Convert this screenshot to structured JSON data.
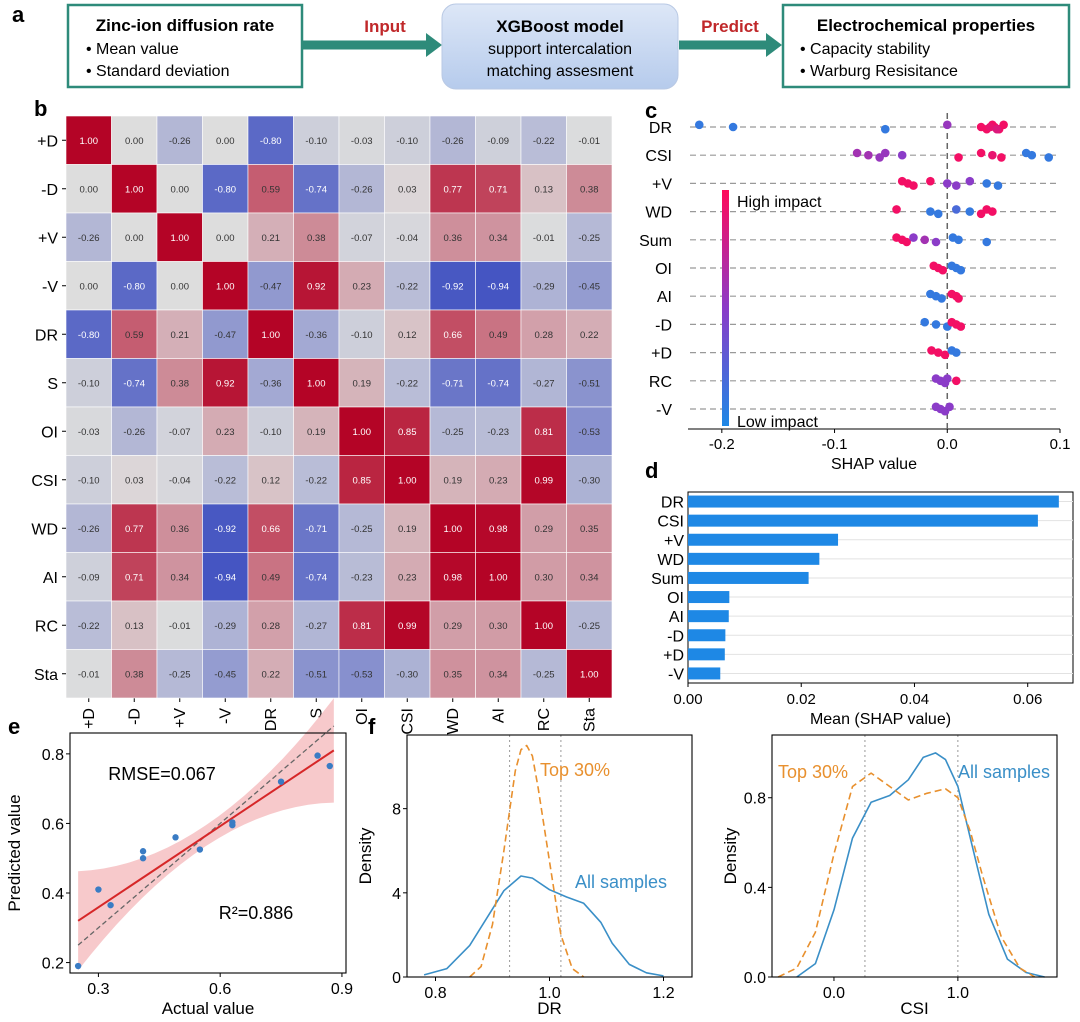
{
  "panel_labels": {
    "a": "a",
    "b": "b",
    "c": "c",
    "d": "d",
    "e": "e",
    "f": "f"
  },
  "flow": {
    "box1": {
      "title": "Zinc-ion diffusion rate",
      "items": [
        "• Mean value",
        "• Standard deviation"
      ]
    },
    "arrow1": "Input",
    "box2": {
      "title": "XGBoost model",
      "lines": [
        "support intercalation",
        "matching assesment"
      ]
    },
    "arrow2": "Predict",
    "box3": {
      "title": "Electrochemical properties",
      "items": [
        "• Capacity stability",
        "• Warburg Resisitance"
      ]
    },
    "colors": {
      "border": "#2e8b7a",
      "arrow": "#2e8b7a",
      "arrow_text": "#c0282a",
      "model_fill": "#c9d9f2"
    }
  },
  "chart_data": [
    {
      "type": "heatmap",
      "labels": [
        "+D",
        "-D",
        "+V",
        "-V",
        "DR",
        "S",
        "OI",
        "CSI",
        "WD",
        "AI",
        "RC",
        "Sta"
      ],
      "colormap": "coolwarm",
      "vmin": -1,
      "vmax": 1,
      "matrix": [
        [
          1.0,
          -0.0,
          -0.26,
          0.0,
          -0.8,
          -0.1,
          -0.03,
          -0.1,
          -0.26,
          -0.09,
          -0.22,
          -0.01
        ],
        [
          -0.0,
          1.0,
          0.0,
          -0.8,
          0.59,
          -0.74,
          -0.26,
          0.03,
          0.77,
          0.71,
          0.13,
          0.38
        ],
        [
          -0.26,
          0.0,
          1.0,
          0.0,
          0.21,
          0.38,
          -0.07,
          -0.04,
          0.36,
          0.34,
          -0.01,
          -0.25
        ],
        [
          0.0,
          -0.8,
          0.0,
          1.0,
          -0.47,
          0.92,
          0.23,
          -0.22,
          -0.92,
          -0.94,
          -0.29,
          -0.45
        ],
        [
          -0.8,
          0.59,
          0.21,
          -0.47,
          1.0,
          -0.36,
          -0.1,
          0.12,
          0.66,
          0.49,
          0.28,
          0.22
        ],
        [
          -0.1,
          -0.74,
          0.38,
          0.92,
          -0.36,
          1.0,
          0.19,
          -0.22,
          -0.71,
          -0.74,
          -0.27,
          -0.51
        ],
        [
          -0.03,
          -0.26,
          -0.07,
          0.23,
          -0.1,
          0.19,
          1.0,
          0.85,
          -0.25,
          -0.23,
          0.81,
          -0.53
        ],
        [
          -0.1,
          0.03,
          -0.04,
          -0.22,
          0.12,
          -0.22,
          0.85,
          1.0,
          0.19,
          0.23,
          0.99,
          -0.3
        ],
        [
          -0.26,
          0.77,
          0.36,
          -0.92,
          0.66,
          -0.71,
          -0.25,
          0.19,
          1.0,
          0.98,
          0.29,
          0.35
        ],
        [
          -0.09,
          0.71,
          0.34,
          -0.94,
          0.49,
          -0.74,
          -0.23,
          0.23,
          0.98,
          1.0,
          0.3,
          0.34
        ],
        [
          -0.22,
          0.13,
          -0.01,
          -0.29,
          0.28,
          -0.27,
          0.81,
          0.99,
          0.29,
          0.3,
          1.0,
          -0.25
        ],
        [
          -0.01,
          0.38,
          -0.25,
          -0.45,
          0.22,
          -0.51,
          -0.53,
          -0.3,
          0.35,
          0.34,
          -0.25,
          1.0
        ]
      ]
    },
    {
      "type": "scatter",
      "subtype": "shap_beeswarm",
      "features": [
        "DR",
        "CSI",
        "+V",
        "WD",
        "Sum",
        "OI",
        "AI",
        "-D",
        "+D",
        "RC",
        "-V"
      ],
      "xlabel": "SHAP value",
      "xlim": [
        -0.23,
        0.1
      ],
      "xticks": [
        -0.2,
        -0.1,
        0.0,
        0.1
      ],
      "xtick_labels": [
        "-0.2",
        "-0.1",
        "0.0",
        "0.1"
      ],
      "colorbar": {
        "high": "High impact",
        "low": "Low impact",
        "high_color": "#ff0a5a",
        "low_color": "#1e88e5"
      },
      "points": [
        [
          [
            -0.22,
            0.1
          ],
          [
            -0.19,
            0.1
          ],
          [
            -0.055,
            0.1
          ],
          [
            0.0,
            0.55
          ],
          [
            0.03,
            0.95
          ],
          [
            0.035,
            0.95
          ],
          [
            0.04,
            0.95
          ],
          [
            0.042,
            0.95
          ],
          [
            0.046,
            0.95
          ],
          [
            0.05,
            0.95
          ],
          [
            0.038,
            0.9
          ],
          [
            0.044,
            0.85
          ]
        ],
        [
          [
            -0.08,
            0.6
          ],
          [
            -0.07,
            0.6
          ],
          [
            -0.06,
            0.55
          ],
          [
            -0.055,
            0.55
          ],
          [
            -0.04,
            0.5
          ],
          [
            0.01,
            0.95
          ],
          [
            0.03,
            0.95
          ],
          [
            0.04,
            0.9
          ],
          [
            0.048,
            0.95
          ],
          [
            0.07,
            0.1
          ],
          [
            0.075,
            0.1
          ],
          [
            0.09,
            0.1
          ]
        ],
        [
          [
            -0.04,
            0.95
          ],
          [
            -0.035,
            0.95
          ],
          [
            -0.03,
            0.95
          ],
          [
            -0.015,
            0.95
          ],
          [
            0.0,
            0.5
          ],
          [
            0.008,
            0.5
          ],
          [
            0.02,
            0.5
          ],
          [
            0.035,
            0.1
          ],
          [
            0.045,
            0.1
          ]
        ],
        [
          [
            -0.045,
            0.95
          ],
          [
            -0.015,
            0.1
          ],
          [
            -0.008,
            0.1
          ],
          [
            0.008,
            0.2
          ],
          [
            0.02,
            0.1
          ],
          [
            0.03,
            0.95
          ],
          [
            0.035,
            0.95
          ],
          [
            0.04,
            0.95
          ]
        ],
        [
          [
            -0.045,
            0.95
          ],
          [
            -0.04,
            0.95
          ],
          [
            -0.036,
            0.95
          ],
          [
            -0.03,
            0.5
          ],
          [
            -0.02,
            0.6
          ],
          [
            -0.01,
            0.5
          ],
          [
            0.005,
            0.1
          ],
          [
            0.01,
            0.1
          ],
          [
            0.035,
            0.1
          ]
        ],
        [
          [
            -0.012,
            0.95
          ],
          [
            -0.008,
            0.95
          ],
          [
            -0.004,
            0.95
          ],
          [
            0.004,
            0.1
          ],
          [
            0.008,
            0.1
          ],
          [
            0.012,
            0.1
          ]
        ],
        [
          [
            -0.015,
            0.1
          ],
          [
            -0.01,
            0.1
          ],
          [
            -0.005,
            0.1
          ],
          [
            0.004,
            0.95
          ],
          [
            0.008,
            0.95
          ],
          [
            0.01,
            0.95
          ]
        ],
        [
          [
            -0.02,
            0.1
          ],
          [
            -0.01,
            0.1
          ],
          [
            0.0,
            0.1
          ],
          [
            0.004,
            0.95
          ],
          [
            0.008,
            0.95
          ],
          [
            0.012,
            0.95
          ]
        ],
        [
          [
            -0.014,
            0.95
          ],
          [
            -0.008,
            0.95
          ],
          [
            -0.002,
            0.95
          ],
          [
            0.004,
            0.1
          ],
          [
            0.008,
            0.1
          ]
        ],
        [
          [
            -0.01,
            0.5
          ],
          [
            -0.006,
            0.5
          ],
          [
            -0.002,
            0.5
          ],
          [
            0.0,
            0.5
          ],
          [
            0.008,
            0.95
          ]
        ],
        [
          [
            -0.01,
            0.5
          ],
          [
            -0.006,
            0.5
          ],
          [
            -0.002,
            0.5
          ],
          [
            0.002,
            0.5
          ]
        ]
      ]
    },
    {
      "type": "bar",
      "orientation": "horizontal",
      "categories": [
        "DR",
        "CSI",
        "+V",
        "WD",
        "Sum",
        "OI",
        "AI",
        "-D",
        "+D",
        "-V"
      ],
      "values": [
        0.0655,
        0.0618,
        0.0265,
        0.0232,
        0.0213,
        0.0073,
        0.0072,
        0.0066,
        0.0065,
        0.0057
      ],
      "xlabel": "Mean (SHAP value)",
      "xlim": [
        0,
        0.068
      ],
      "xticks": [
        0.0,
        0.02,
        0.04,
        0.06
      ],
      "xtick_labels": [
        "0.00",
        "0.02",
        "0.04",
        "0.06"
      ],
      "color": "#1e88e5"
    },
    {
      "type": "scatter",
      "xlabel": "Actual value",
      "ylabel": "Predicted value",
      "xlim": [
        0.23,
        0.91
      ],
      "ylim": [
        0.17,
        0.86
      ],
      "xticks": [
        0.3,
        0.6,
        0.9
      ],
      "yticks": [
        0.2,
        0.4,
        0.6,
        0.8
      ],
      "xtick_labels": [
        "0.3",
        "0.6",
        "0.9"
      ],
      "ytick_labels": [
        "0.2",
        "0.4",
        "0.6",
        "0.8"
      ],
      "points": [
        [
          0.25,
          0.19
        ],
        [
          0.3,
          0.41
        ],
        [
          0.33,
          0.365
        ],
        [
          0.41,
          0.52
        ],
        [
          0.41,
          0.5
        ],
        [
          0.49,
          0.56
        ],
        [
          0.55,
          0.525
        ],
        [
          0.63,
          0.595
        ],
        [
          0.63,
          0.603
        ],
        [
          0.75,
          0.72
        ],
        [
          0.84,
          0.795
        ],
        [
          0.87,
          0.765
        ]
      ],
      "fit_line": [
        [
          0.25,
          0.32
        ],
        [
          0.88,
          0.81
        ]
      ],
      "identity_line": [
        [
          0.25,
          0.25
        ],
        [
          0.88,
          0.88
        ]
      ],
      "annotations": [
        "RMSE=0.067",
        "R²=0.886"
      ],
      "colors": {
        "points": "#3a7cc4",
        "fit": "#d62728",
        "band": "#f4b7b9"
      }
    },
    {
      "type": "line",
      "subtype": "kde",
      "xlabel": "DR",
      "ylabel": "Density",
      "xlim": [
        0.75,
        1.25
      ],
      "ylim": [
        0,
        11.5
      ],
      "xticks": [
        0.8,
        1.0,
        1.2
      ],
      "yticks": [
        0,
        4,
        8
      ],
      "xtick_labels": [
        "0.8",
        "1.0",
        "1.2"
      ],
      "ytick_labels": [
        "0",
        "4",
        "8"
      ],
      "vlines": [
        0.93,
        1.02
      ],
      "series": [
        {
          "name": "All samples",
          "color": "#3a8fc7",
          "dash": "solid",
          "x": [
            0.78,
            0.82,
            0.86,
            0.89,
            0.92,
            0.95,
            0.97,
            1.0,
            1.03,
            1.06,
            1.09,
            1.11,
            1.14,
            1.17,
            1.2
          ],
          "y": [
            0.1,
            0.4,
            1.5,
            2.8,
            4.1,
            4.8,
            4.7,
            4.15,
            3.8,
            3.5,
            2.6,
            1.6,
            0.6,
            0.2,
            0.05
          ]
        },
        {
          "name": "Top 30%",
          "color": "#e8902e",
          "dash": "dashed",
          "x": [
            0.86,
            0.88,
            0.9,
            0.92,
            0.94,
            0.95,
            0.96,
            0.97,
            0.98,
            1.0,
            1.02,
            1.04,
            1.06
          ],
          "y": [
            0.0,
            0.5,
            2.5,
            6.0,
            9.8,
            10.8,
            11.0,
            10.5,
            9.0,
            5.5,
            2.0,
            0.4,
            0.0
          ]
        }
      ]
    },
    {
      "type": "line",
      "subtype": "kde",
      "xlabel": "CSI",
      "ylabel": "Density",
      "xlim": [
        -0.5,
        1.8
      ],
      "ylim": [
        0,
        1.08
      ],
      "xticks": [
        0.0,
        1.0
      ],
      "yticks": [
        0.0,
        0.4,
        0.8
      ],
      "xtick_labels": [
        "0.0",
        "1.0"
      ],
      "ytick_labels": [
        "0.0",
        "0.4",
        "0.8"
      ],
      "vlines": [
        0.25,
        1.0
      ],
      "series": [
        {
          "name": "All samples",
          "color": "#3a8fc7",
          "dash": "solid",
          "x": [
            -0.3,
            -0.15,
            0.0,
            0.15,
            0.3,
            0.45,
            0.6,
            0.72,
            0.82,
            0.9,
            1.0,
            1.1,
            1.25,
            1.4,
            1.55,
            1.7
          ],
          "y": [
            0.0,
            0.06,
            0.3,
            0.62,
            0.78,
            0.81,
            0.88,
            0.98,
            1.0,
            0.97,
            0.85,
            0.62,
            0.28,
            0.08,
            0.02,
            0.0
          ]
        },
        {
          "name": "Top 30%",
          "color": "#e8902e",
          "dash": "dashed",
          "x": [
            -0.45,
            -0.3,
            -0.15,
            0.0,
            0.15,
            0.3,
            0.45,
            0.6,
            0.75,
            0.9,
            1.0,
            1.1,
            1.2,
            1.35,
            1.5,
            1.62
          ],
          "y": [
            0.0,
            0.04,
            0.2,
            0.55,
            0.85,
            0.91,
            0.85,
            0.79,
            0.82,
            0.84,
            0.8,
            0.65,
            0.45,
            0.18,
            0.04,
            0.0
          ]
        }
      ]
    }
  ]
}
